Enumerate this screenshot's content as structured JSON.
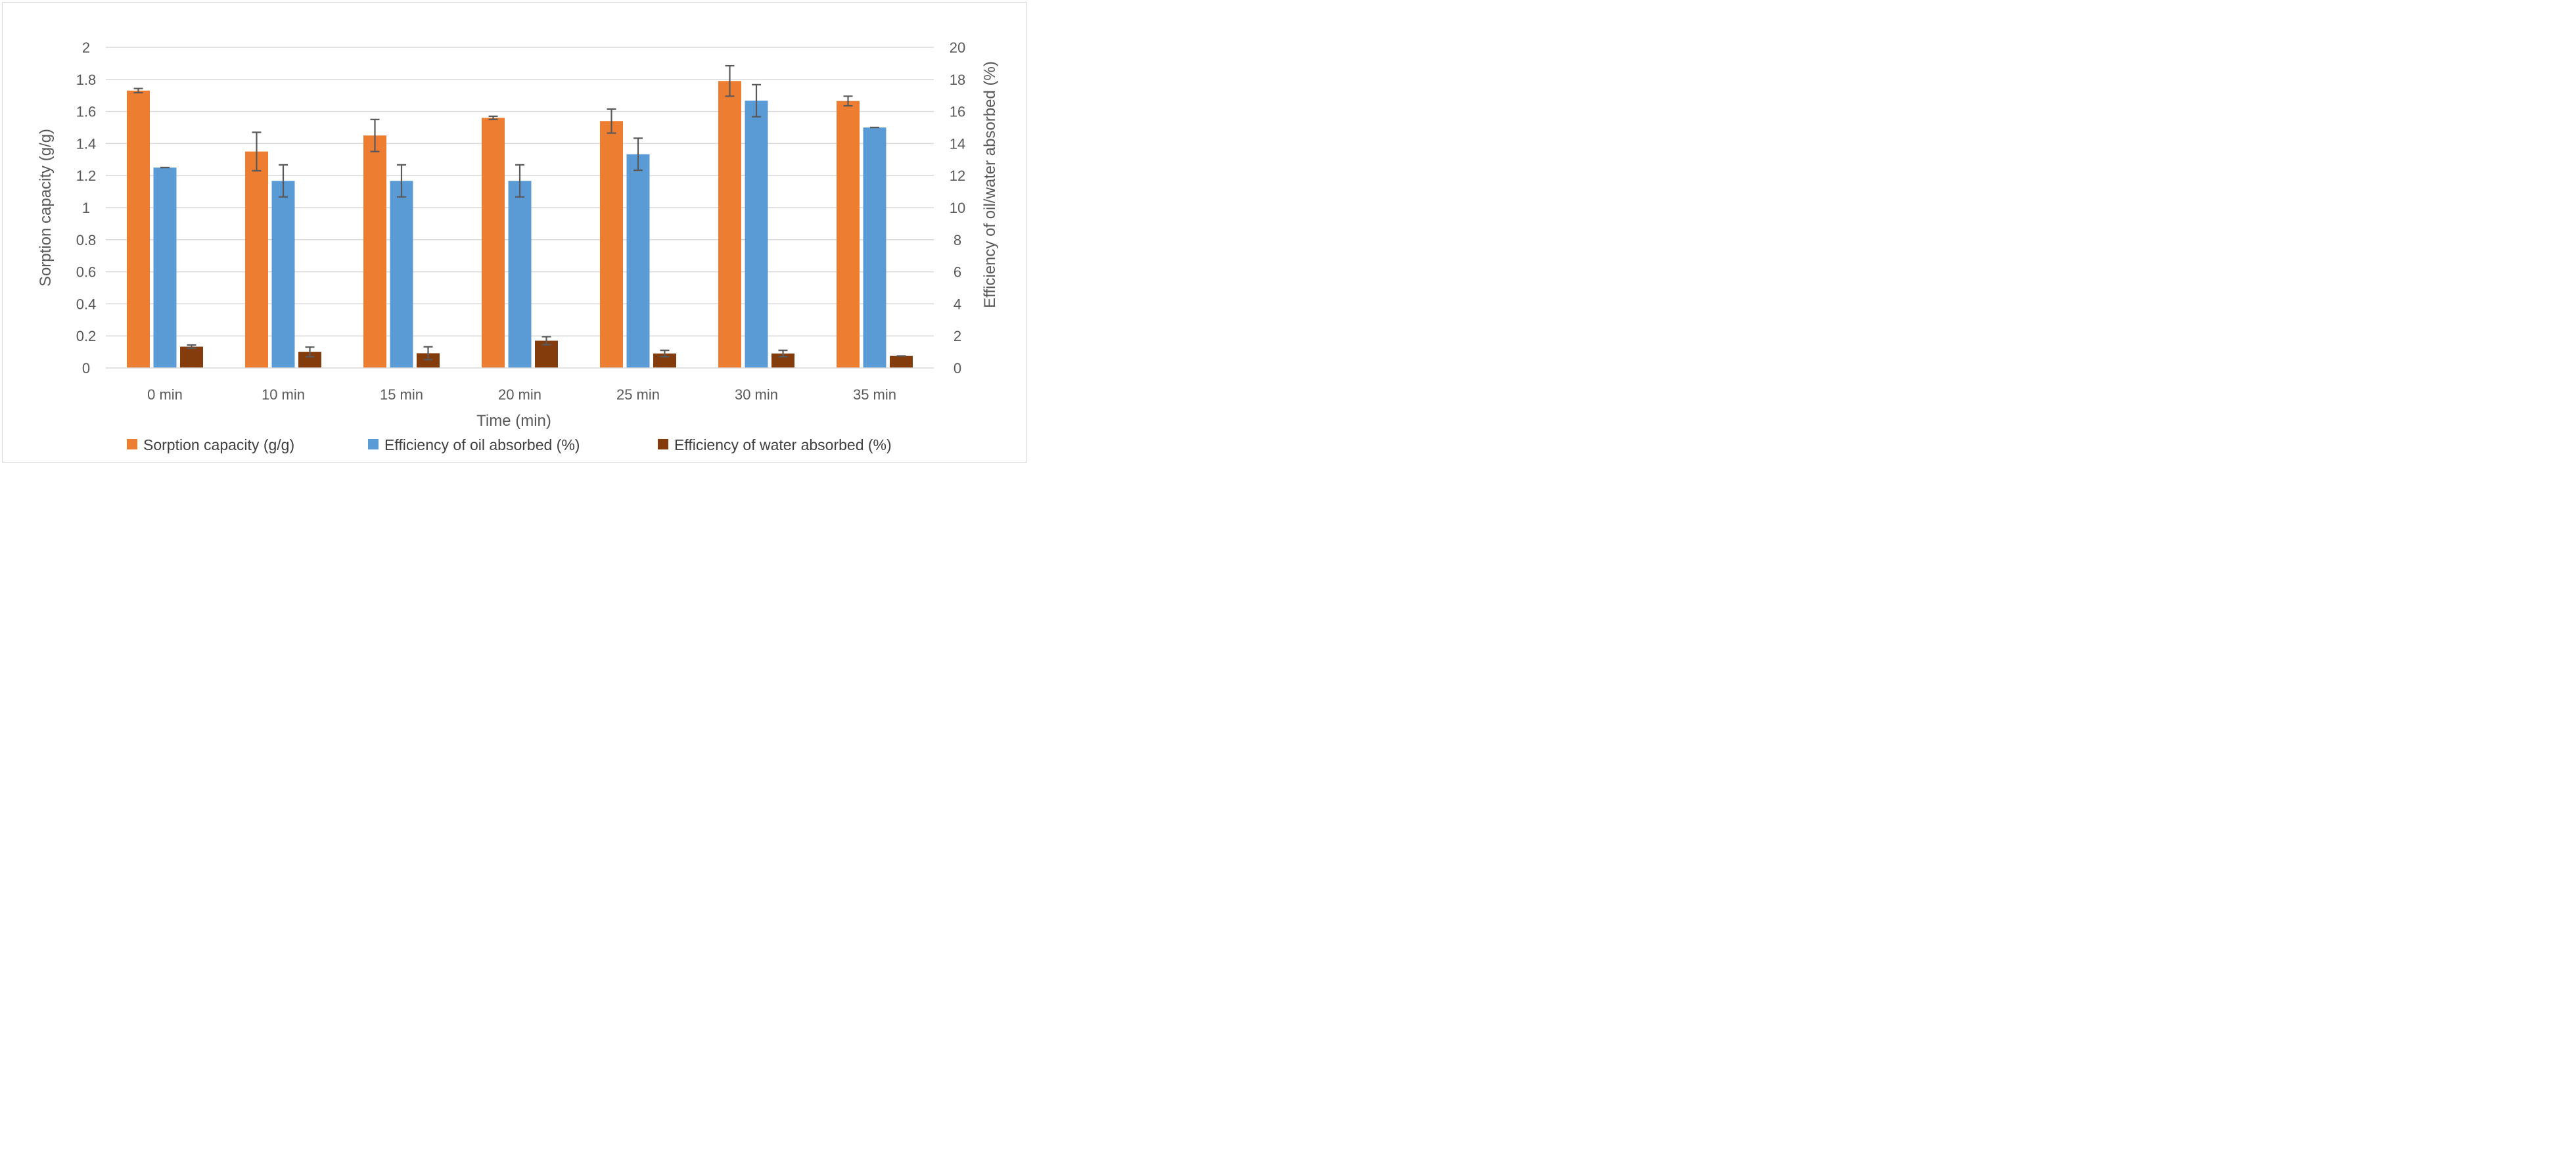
{
  "chart_data": {
    "type": "bar",
    "title": "",
    "xlabel": "Time (min)",
    "ylabel": "Sorption capacity (g/g)",
    "y2label": "Efficiency of oil/water absorbed (%)",
    "ylim": [
      0,
      2
    ],
    "y2lim": [
      0,
      20
    ],
    "yticks": [
      "0",
      "0.2",
      "0.4",
      "0.6",
      "0.8",
      "1",
      "1.2",
      "1.4",
      "1.6",
      "1.8",
      "2"
    ],
    "y2ticks": [
      "0",
      "2",
      "4",
      "6",
      "8",
      "10",
      "12",
      "14",
      "16",
      "18",
      "20"
    ],
    "categories": [
      "0 min",
      "10 min",
      "15 min",
      "20 min",
      "25 min",
      "30 min",
      "35 min"
    ],
    "grid": true,
    "legend_position": "bottom",
    "series": [
      {
        "name": "Sorption capacity (g/g)",
        "axis": "left",
        "color": "#ed7d31",
        "values": [
          1.73,
          1.35,
          1.45,
          1.56,
          1.54,
          1.79,
          1.665
        ],
        "errors": [
          0.013,
          0.12,
          0.1,
          0.01,
          0.075,
          0.095,
          0.03
        ]
      },
      {
        "name": "Efficiency of oil absorbed (%)",
        "axis": "right",
        "color": "#5b9bd5",
        "values": [
          12.5,
          11.67,
          11.67,
          11.67,
          13.33,
          16.67,
          15.0
        ],
        "errors": [
          0,
          1.0,
          1.0,
          1.0,
          1.0,
          1.0,
          0
        ]
      },
      {
        "name": "Efficiency of water absorbed (%)",
        "axis": "right",
        "color": "#843c0c",
        "values": [
          1.33,
          1.0,
          0.92,
          1.7,
          0.9,
          0.9,
          0.75
        ],
        "errors": [
          0.1,
          0.3,
          0.4,
          0.25,
          0.2,
          0.2,
          0
        ]
      }
    ]
  }
}
